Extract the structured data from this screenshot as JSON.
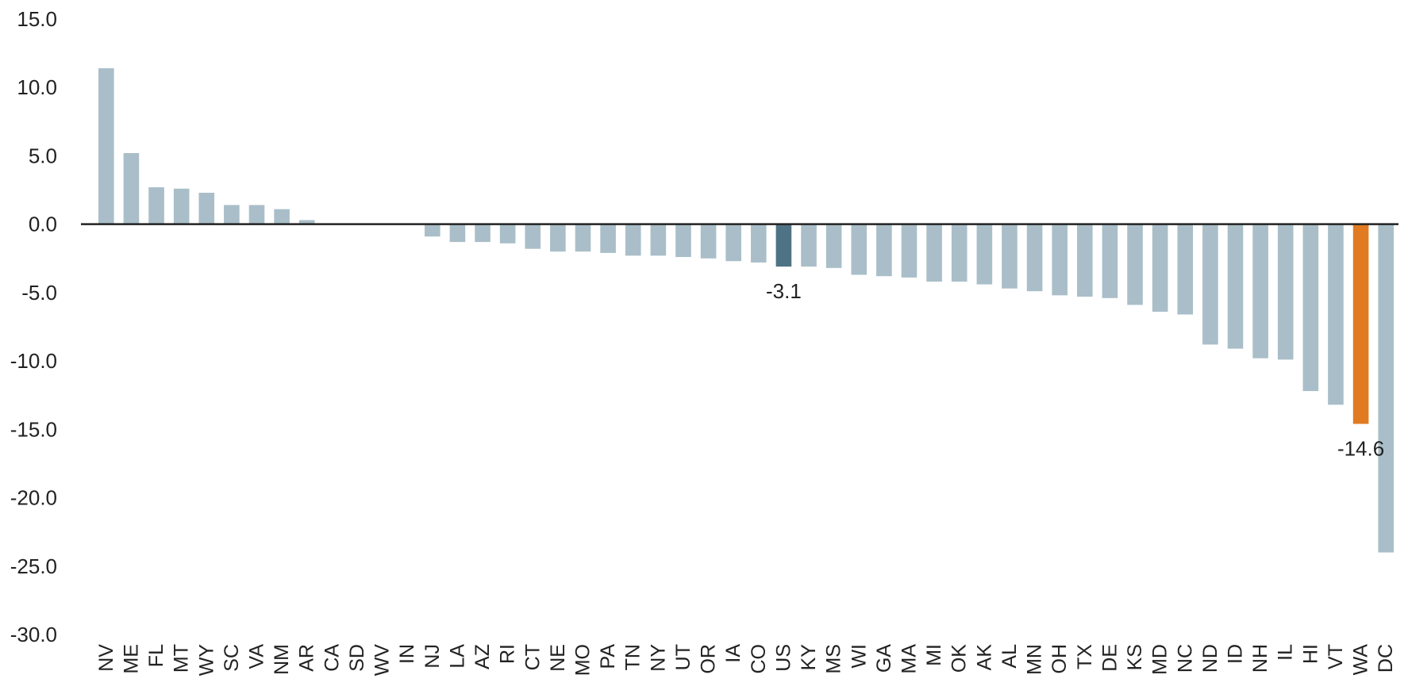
{
  "chart_data": {
    "type": "bar",
    "title": "",
    "xlabel": "",
    "ylabel": "",
    "ylim": [
      -30,
      15
    ],
    "yticks": [
      15,
      10,
      5,
      0,
      -5,
      -10,
      -15,
      -20,
      -25,
      -30
    ],
    "ytick_labels": [
      "15.0",
      "10.0",
      "5.0",
      "0.0",
      "-5.0",
      "-10.0",
      "-15.0",
      "-20.0",
      "-25.0",
      "-30.0"
    ],
    "grid": false,
    "legend": "none",
    "categories": [
      "NV",
      "ME",
      "FL",
      "MT",
      "WY",
      "SC",
      "VA",
      "NM",
      "AR",
      "CA",
      "SD",
      "WV",
      "IN",
      "NJ",
      "LA",
      "AZ",
      "RI",
      "CT",
      "NE",
      "MO",
      "PA",
      "TN",
      "NY",
      "UT",
      "OR",
      "IA",
      "CO",
      "US",
      "KY",
      "MS",
      "WI",
      "GA",
      "MA",
      "MI",
      "OK",
      "AK",
      "AL",
      "MN",
      "OH",
      "TX",
      "DE",
      "KS",
      "MD",
      "NC",
      "ND",
      "ID",
      "NH",
      "IL",
      "HI",
      "VT",
      "WA",
      "DC"
    ],
    "values": [
      11.4,
      5.2,
      2.7,
      2.6,
      2.3,
      1.4,
      1.4,
      1.1,
      0.3,
      0.0,
      0.0,
      0.0,
      0.0,
      -0.9,
      -1.3,
      -1.3,
      -1.4,
      -1.8,
      -2.0,
      -2.0,
      -2.1,
      -2.3,
      -2.3,
      -2.4,
      -2.5,
      -2.7,
      -2.8,
      -3.1,
      -3.1,
      -3.2,
      -3.7,
      -3.8,
      -3.9,
      -4.2,
      -4.2,
      -4.4,
      -4.7,
      -4.9,
      -5.2,
      -5.3,
      -5.4,
      -5.9,
      -6.4,
      -6.6,
      -8.8,
      -9.1,
      -9.8,
      -9.9,
      -12.2,
      -13.2,
      -14.6,
      -24.0
    ],
    "colors": {
      "default": "#a9bec8",
      "US": "#4e7384",
      "WA": "#e07b22",
      "axis": "#222222"
    },
    "annotations": [
      {
        "category": "US",
        "text": "-3.1"
      },
      {
        "category": "WA",
        "text": "-14.6"
      }
    ]
  }
}
